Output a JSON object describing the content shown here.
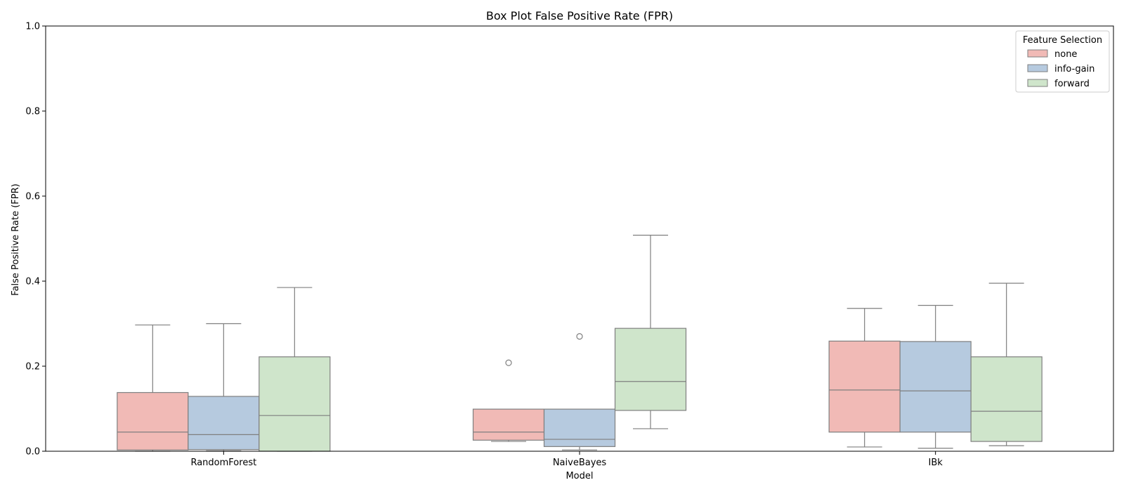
{
  "chart_data": {
    "type": "box",
    "title": "Box Plot False Positive Rate (FPR)",
    "xlabel": "Model",
    "ylabel": "False Positive Rate (FPR)",
    "ylim": [
      0,
      1.0
    ],
    "yticks": [
      "0.0",
      "0.2",
      "0.4",
      "0.6",
      "0.8",
      "1.0"
    ],
    "categories": [
      "RandomForest",
      "NaiveBayes",
      "IBk"
    ],
    "legend": {
      "title": "Feature Selection",
      "position": "top-right"
    },
    "grid": false,
    "series": [
      {
        "name": "none",
        "color": "#f1bab6",
        "boxes": [
          {
            "whislo": 0.0,
            "q1": 0.003,
            "median": 0.045,
            "q3": 0.138,
            "whishi": 0.297,
            "fliers": []
          },
          {
            "whislo": 0.023,
            "q1": 0.026,
            "median": 0.045,
            "q3": 0.099,
            "whishi": 0.099,
            "fliers": [
              0.208
            ]
          },
          {
            "whislo": 0.01,
            "q1": 0.045,
            "median": 0.144,
            "q3": 0.259,
            "whishi": 0.336,
            "fliers": []
          }
        ]
      },
      {
        "name": "info-gain",
        "color": "#b6cadf",
        "boxes": [
          {
            "whislo": 0.001,
            "q1": 0.004,
            "median": 0.039,
            "q3": 0.129,
            "whishi": 0.3,
            "fliers": []
          },
          {
            "whislo": 0.003,
            "q1": 0.011,
            "median": 0.028,
            "q3": 0.099,
            "whishi": 0.099,
            "fliers": [
              0.27
            ]
          },
          {
            "whislo": 0.007,
            "q1": 0.045,
            "median": 0.142,
            "q3": 0.258,
            "whishi": 0.343,
            "fliers": []
          }
        ]
      },
      {
        "name": "forward",
        "color": "#cfe5cb",
        "boxes": [
          {
            "whislo": 0.0,
            "q1": 0.0,
            "median": 0.084,
            "q3": 0.222,
            "whishi": 0.385,
            "fliers": []
          },
          {
            "whislo": 0.053,
            "q1": 0.096,
            "median": 0.164,
            "q3": 0.289,
            "whishi": 0.508,
            "fliers": []
          },
          {
            "whislo": 0.013,
            "q1": 0.023,
            "median": 0.094,
            "q3": 0.222,
            "whishi": 0.395,
            "fliers": []
          }
        ]
      }
    ]
  }
}
